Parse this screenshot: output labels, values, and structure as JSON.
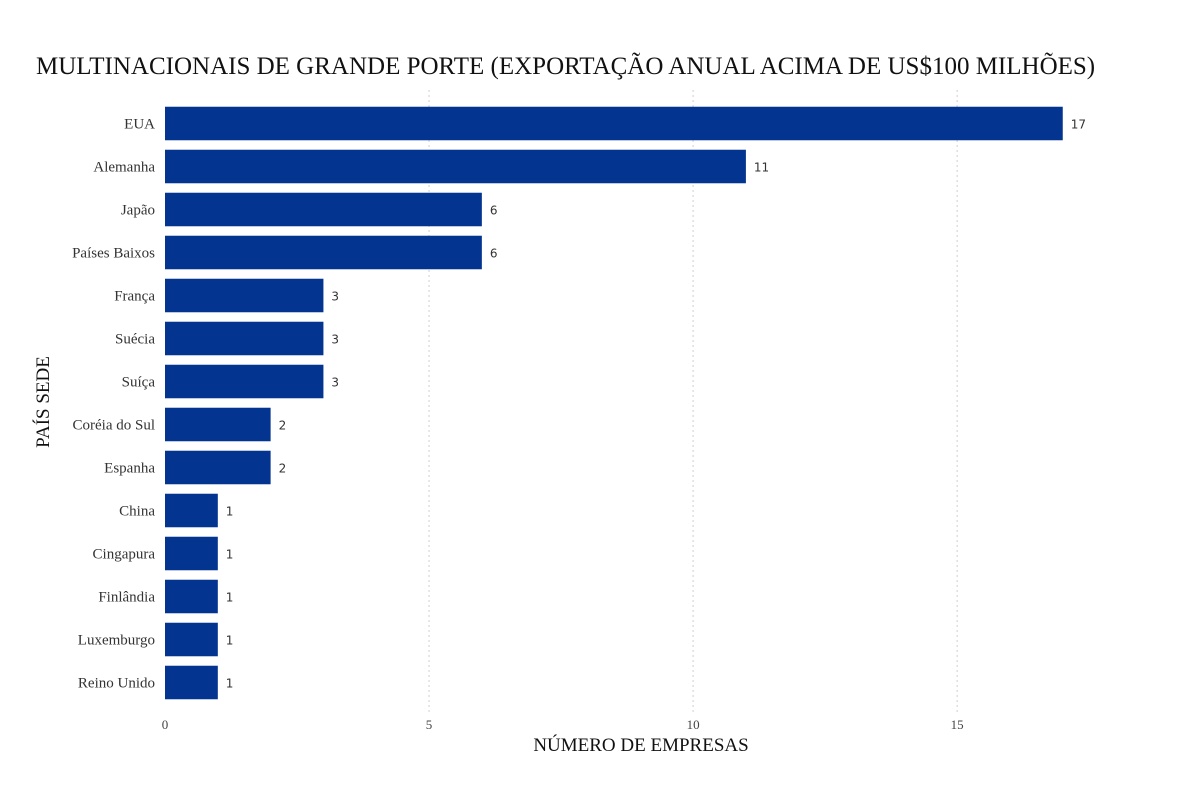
{
  "chart_data": {
    "type": "bar",
    "orientation": "horizontal",
    "title": "MULTINACIONAIS DE GRANDE PORTE (EXPORTAÇÃO ANUAL ACIMA DE US$100 MILHÕES)",
    "xlabel": "NÚMERO DE EMPRESAS",
    "ylabel": "PAÍS SEDE",
    "categories": [
      "EUA",
      "Alemanha",
      "Japão",
      "Países Baixos",
      "França",
      "Suécia",
      "Suíça",
      "Coréia do Sul",
      "Espanha",
      "China",
      "Cingapura",
      "Finlândia",
      "Luxemburgo",
      "Reino Unido"
    ],
    "values": [
      17,
      11,
      6,
      6,
      3,
      3,
      3,
      2,
      2,
      1,
      1,
      1,
      1,
      1
    ],
    "xlim": [
      0,
      17.8
    ],
    "xticks": [
      0,
      5,
      10,
      15
    ],
    "grid": "vertical dotted",
    "data_labels": true,
    "bar_color": "#03348f",
    "grid_color": "#cfcfcf"
  }
}
